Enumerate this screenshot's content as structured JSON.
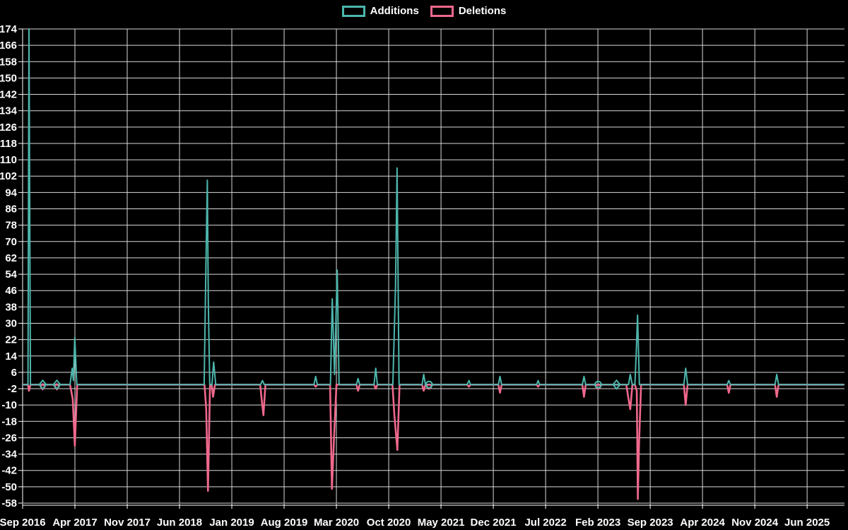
{
  "chart_data": {
    "type": "line",
    "title": "",
    "legend_position": "top",
    "legend": [
      {
        "label": "Additions",
        "color": "#4DB6AC"
      },
      {
        "label": "Deletions",
        "color": "#F0688C"
      }
    ],
    "colors": {
      "background": "#000000",
      "grid": "#D9D9D9",
      "axis": "#FFFFFF",
      "text": "#FFFFFF",
      "additions": "#4DB6AC",
      "deletions": "#F0688C"
    },
    "x_unit": "months since Sep 2016, one tick label every 7 months",
    "x_tick_labels": [
      "Sep 2016",
      "Apr 2017",
      "Nov 2017",
      "Jun 2018",
      "Jan 2019",
      "Aug 2019",
      "Mar 2020",
      "Oct 2020",
      "May 2021",
      "Dec 2021",
      "Jul 2022",
      "Feb 2023",
      "Sep 2023",
      "Apr 2024",
      "Nov 2024",
      "Jun 2025"
    ],
    "x_tick_step_months": 7,
    "xlim": [
      0,
      110
    ],
    "y_ticks": [
      174,
      166,
      158,
      150,
      142,
      134,
      126,
      118,
      110,
      102,
      94,
      86,
      78,
      70,
      62,
      54,
      46,
      38,
      30,
      22,
      14,
      6,
      -2,
      -10,
      -18,
      -26,
      -34,
      -42,
      -50,
      -58
    ],
    "ylim": [
      -58,
      174
    ],
    "y_step": 8,
    "grid": true,
    "series": [
      {
        "name": "Additions",
        "color": "#4DB6AC",
        "points": [
          [
            0,
            0
          ],
          [
            0.72,
            0
          ],
          [
            0.85,
            174
          ],
          [
            1.05,
            0
          ],
          [
            6.35,
            0
          ],
          [
            6.64,
            8
          ],
          [
            6.8,
            2
          ],
          [
            6.98,
            23
          ],
          [
            7.25,
            0
          ],
          [
            24.3,
            0
          ],
          [
            24.53,
            56
          ],
          [
            24.72,
            100
          ],
          [
            24.86,
            40
          ],
          [
            25.05,
            0
          ],
          [
            25.35,
            0
          ],
          [
            25.57,
            11
          ],
          [
            25.85,
            0
          ],
          [
            31.85,
            0
          ],
          [
            32.1,
            2
          ],
          [
            32.35,
            0
          ],
          [
            39.0,
            0
          ],
          [
            39.22,
            4
          ],
          [
            39.45,
            0
          ],
          [
            41.2,
            0
          ],
          [
            41.45,
            42
          ],
          [
            41.75,
            5
          ],
          [
            42.11,
            56
          ],
          [
            42.35,
            0
          ],
          [
            44.68,
            0
          ],
          [
            44.9,
            3
          ],
          [
            45.12,
            0
          ],
          [
            47.04,
            0
          ],
          [
            47.26,
            8
          ],
          [
            47.48,
            0
          ],
          [
            49.55,
            0
          ],
          [
            49.91,
            48
          ],
          [
            50.12,
            106
          ],
          [
            50.38,
            0
          ],
          [
            53.47,
            0
          ],
          [
            53.69,
            5
          ],
          [
            53.91,
            0
          ],
          [
            59.5,
            0
          ],
          [
            59.74,
            2
          ],
          [
            59.95,
            0
          ],
          [
            63.67,
            0
          ],
          [
            63.89,
            4
          ],
          [
            64.11,
            0
          ],
          [
            68.8,
            0
          ],
          [
            69.0,
            2
          ],
          [
            69.2,
            0
          ],
          [
            74.92,
            0
          ],
          [
            75.14,
            4
          ],
          [
            75.36,
            0
          ],
          [
            81.1,
            0
          ],
          [
            81.33,
            5
          ],
          [
            81.6,
            0
          ],
          [
            81.95,
            0
          ],
          [
            82.14,
            16
          ],
          [
            82.31,
            34
          ],
          [
            82.55,
            0
          ],
          [
            88.5,
            0
          ],
          [
            88.75,
            8
          ],
          [
            89.0,
            0
          ],
          [
            94.3,
            0
          ],
          [
            94.52,
            2
          ],
          [
            94.74,
            0
          ],
          [
            100.7,
            0
          ],
          [
            100.94,
            5
          ],
          [
            101.18,
            0
          ],
          [
            109.9,
            0
          ]
        ]
      },
      {
        "name": "Deletions",
        "color": "#F0688C",
        "points": [
          [
            0,
            0
          ],
          [
            0.72,
            0
          ],
          [
            0.85,
            -3
          ],
          [
            1.05,
            0
          ],
          [
            6.35,
            0
          ],
          [
            6.71,
            -7
          ],
          [
            6.99,
            -30
          ],
          [
            7.3,
            0
          ],
          [
            24.35,
            0
          ],
          [
            24.57,
            -12
          ],
          [
            24.81,
            -52
          ],
          [
            25.08,
            0
          ],
          [
            25.3,
            0
          ],
          [
            25.49,
            -6
          ],
          [
            25.75,
            0
          ],
          [
            31.8,
            0
          ],
          [
            32.04,
            -9
          ],
          [
            32.23,
            -15
          ],
          [
            32.5,
            0
          ],
          [
            39.0,
            0
          ],
          [
            39.22,
            -1
          ],
          [
            39.45,
            0
          ],
          [
            41.15,
            0
          ],
          [
            41.4,
            -51
          ],
          [
            41.68,
            -26
          ],
          [
            42.0,
            0
          ],
          [
            42.35,
            0
          ],
          [
            44.68,
            0
          ],
          [
            44.9,
            -3
          ],
          [
            45.12,
            0
          ],
          [
            47.04,
            0
          ],
          [
            47.26,
            -2
          ],
          [
            47.48,
            0
          ],
          [
            49.5,
            0
          ],
          [
            49.76,
            -15
          ],
          [
            50.16,
            -32
          ],
          [
            50.45,
            0
          ],
          [
            53.47,
            0
          ],
          [
            53.69,
            -3
          ],
          [
            53.91,
            0
          ],
          [
            59.5,
            0
          ],
          [
            59.74,
            -1
          ],
          [
            59.95,
            0
          ],
          [
            63.67,
            0
          ],
          [
            63.89,
            -4
          ],
          [
            64.11,
            0
          ],
          [
            68.8,
            0
          ],
          [
            69.0,
            -1
          ],
          [
            69.2,
            0
          ],
          [
            74.92,
            0
          ],
          [
            75.14,
            -6
          ],
          [
            75.36,
            0
          ],
          [
            80.8,
            0
          ],
          [
            81.05,
            -6
          ],
          [
            81.33,
            -12
          ],
          [
            81.62,
            0
          ],
          [
            81.95,
            0
          ],
          [
            82.2,
            -3
          ],
          [
            82.34,
            -56
          ],
          [
            82.5,
            -29
          ],
          [
            82.78,
            0
          ],
          [
            88.5,
            0
          ],
          [
            88.75,
            -10
          ],
          [
            89.0,
            0
          ],
          [
            94.3,
            0
          ],
          [
            94.52,
            -4
          ],
          [
            94.74,
            0
          ],
          [
            100.7,
            0
          ],
          [
            100.94,
            -6
          ],
          [
            101.18,
            0
          ],
          [
            109.9,
            0
          ]
        ]
      }
    ],
    "markers": [
      {
        "t": 2.69,
        "shape": "diamond",
        "pink_tip": true
      },
      {
        "t": 4.58,
        "shape": "diamond",
        "pink_tip": true
      },
      {
        "t": 54.4,
        "shape": "circle",
        "pink_tip": true
      },
      {
        "t": 77.03,
        "shape": "circle",
        "pink_tip": true
      },
      {
        "t": 79.49,
        "shape": "diamond",
        "pink_tip": false
      }
    ]
  }
}
